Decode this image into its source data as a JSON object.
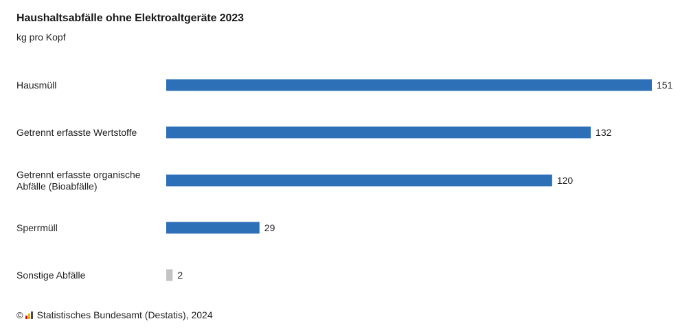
{
  "header": {
    "title": "Haushaltsabfälle ohne Elektroaltgeräte 2023",
    "subtitle": "kg pro Kopf"
  },
  "footer": {
    "copyright_symbol": "©",
    "logo_icon": "destatis-logo-icon",
    "source": "Statistisches Bundesamt (Destatis), 2024"
  },
  "colors": {
    "bar_primary": "#2e70b8",
    "bar_secondary": "#c4c4c4"
  },
  "chart_data": {
    "type": "bar",
    "orientation": "horizontal",
    "title": "Haushaltsabfälle ohne Elektroaltgeräte 2023",
    "subtitle": "kg pro Kopf",
    "categories": [
      [
        "Hausmüll"
      ],
      [
        "Getrennt erfasste Wertstoffe"
      ],
      [
        "Getrennt erfasste organische",
        "Abfälle (Bioabfälle)"
      ],
      [
        "Sperrmüll"
      ],
      [
        "Sonstige Abfälle"
      ]
    ],
    "values": [
      151,
      132,
      120,
      29,
      2
    ],
    "bar_colors": [
      "#2e70b8",
      "#2e70b8",
      "#2e70b8",
      "#2e70b8",
      "#c4c4c4"
    ],
    "data_labels": [
      "151",
      "132",
      "120",
      "29",
      "2"
    ],
    "xlim": [
      0,
      151
    ],
    "grid": false,
    "legend": "none"
  }
}
